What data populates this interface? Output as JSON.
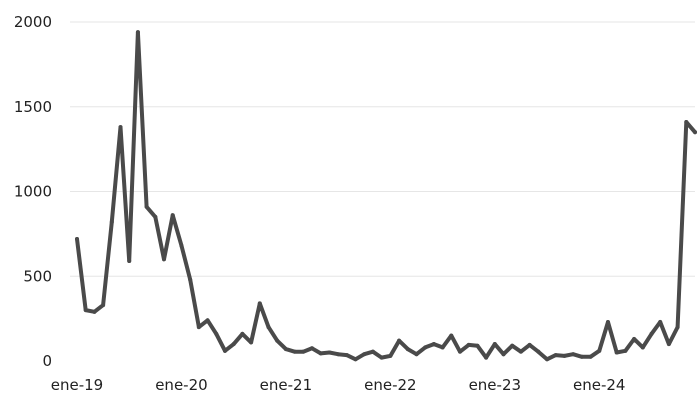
{
  "chart_data": {
    "type": "line",
    "title": "",
    "xlabel": "",
    "ylabel": "",
    "ylim": [
      0,
      2000
    ],
    "grid": true,
    "legend": "none",
    "color": "#4a4a4a",
    "y_ticks": [
      {
        "value": 0,
        "label": "0"
      },
      {
        "value": 500,
        "label": "500"
      },
      {
        "value": 1000,
        "label": "1000"
      },
      {
        "value": 1500,
        "label": "1500"
      },
      {
        "value": 2000,
        "label": "2000"
      }
    ],
    "x_ticks": [
      {
        "value": "2019-01",
        "label": "ene-19"
      },
      {
        "value": "2020-01",
        "label": "ene-20"
      },
      {
        "value": "2021-01",
        "label": "ene-21"
      },
      {
        "value": "2022-01",
        "label": "ene-22"
      },
      {
        "value": "2023-01",
        "label": "ene-23"
      },
      {
        "value": "2024-01",
        "label": "ene-24"
      }
    ],
    "xlim": [
      "2019-01",
      "2024-12"
    ],
    "series": [
      {
        "name": "",
        "x": [
          "2019-01",
          "2019-02",
          "2019-03",
          "2019-04",
          "2019-05",
          "2019-06",
          "2019-07",
          "2019-08",
          "2019-09",
          "2019-10",
          "2019-11",
          "2019-12",
          "2020-01",
          "2020-02",
          "2020-03",
          "2020-04",
          "2020-05",
          "2020-06",
          "2020-07",
          "2020-08",
          "2020-09",
          "2020-10",
          "2020-11",
          "2020-12",
          "2021-01",
          "2021-02",
          "2021-03",
          "2021-04",
          "2021-05",
          "2021-06",
          "2021-07",
          "2021-08",
          "2021-09",
          "2021-10",
          "2021-11",
          "2021-12",
          "2022-01",
          "2022-02",
          "2022-03",
          "2022-04",
          "2022-05",
          "2022-06",
          "2022-07",
          "2022-08",
          "2022-09",
          "2022-10",
          "2022-11",
          "2022-12",
          "2023-01",
          "2023-02",
          "2023-03",
          "2023-04",
          "2023-05",
          "2023-06",
          "2023-07",
          "2023-08",
          "2023-09",
          "2023-10",
          "2023-11",
          "2023-12",
          "2024-01",
          "2024-02",
          "2024-03",
          "2024-04",
          "2024-05",
          "2024-06",
          "2024-07",
          "2024-08",
          "2024-09",
          "2024-10",
          "2024-11",
          "2024-12"
        ],
        "values": [
          720,
          300,
          290,
          330,
          820,
          1380,
          590,
          1940,
          910,
          850,
          600,
          860,
          680,
          480,
          200,
          240,
          160,
          60,
          100,
          160,
          110,
          340,
          200,
          120,
          70,
          55,
          55,
          75,
          45,
          50,
          40,
          35,
          10,
          40,
          55,
          20,
          30,
          120,
          70,
          40,
          80,
          100,
          80,
          150,
          55,
          95,
          90,
          20,
          100,
          40,
          90,
          55,
          95,
          55,
          10,
          35,
          30,
          40,
          25,
          25,
          60,
          230,
          50,
          60,
          130,
          80,
          160,
          230,
          100,
          200,
          1410,
          1350
        ]
      }
    ]
  }
}
